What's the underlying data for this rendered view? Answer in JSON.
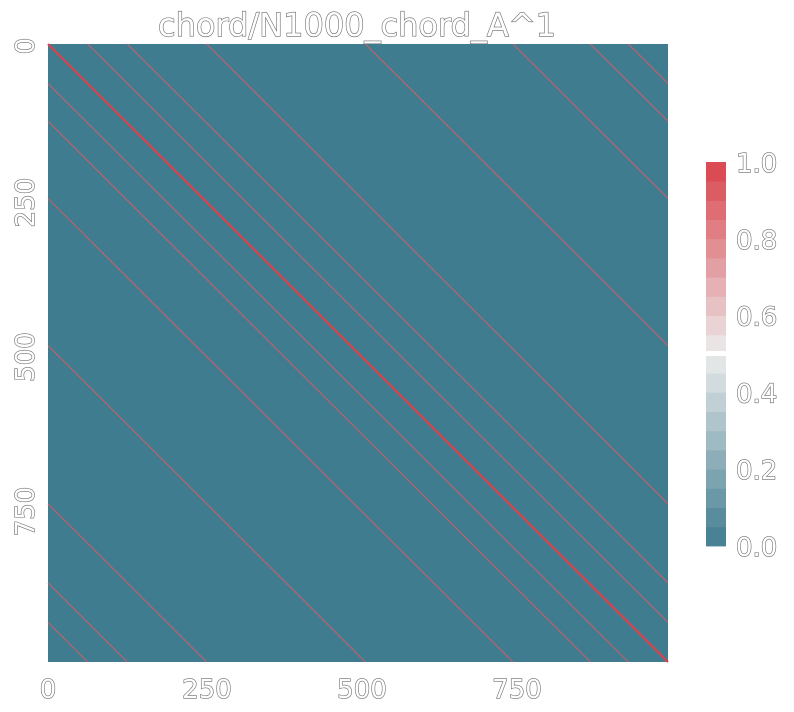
{
  "chart_data": {
    "type": "heatmap",
    "title": "chord/N1000_chord_A^1",
    "xlabel": "",
    "ylabel": "",
    "n": 1000,
    "x_ticks": [
      "0",
      "250",
      "500",
      "750"
    ],
    "x_tick_values": [
      0,
      250,
      500,
      750
    ],
    "y_ticks": [
      "0",
      "250",
      "500",
      "750"
    ],
    "y_tick_values": [
      0,
      250,
      500,
      750
    ],
    "value_range": [
      0,
      1
    ],
    "background_value": 0,
    "cells_value_one": "diagonal plus chord offsets (i, j) where j = i + k or j = i - k (mod 1000 pattern shown as bands)",
    "offsets_value_one": [
      0,
      64,
      128,
      256,
      512,
      750,
      875,
      936
    ],
    "main_diagonal_value": 1,
    "colorbar": {
      "ticks": [
        "0.0",
        "0.2",
        "0.4",
        "0.6",
        "0.8",
        "1.0"
      ],
      "tick_values": [
        0.0,
        0.2,
        0.4,
        0.6,
        0.8,
        1.0
      ],
      "low_color": "#3f7c8f",
      "mid_color": "#ececec",
      "high_color": "#d9434c",
      "segments": 20
    },
    "colors": {
      "background_cell": "#3f7c8f",
      "chord_line": "#c8606a",
      "diagonal_line": "#d9434c"
    }
  }
}
